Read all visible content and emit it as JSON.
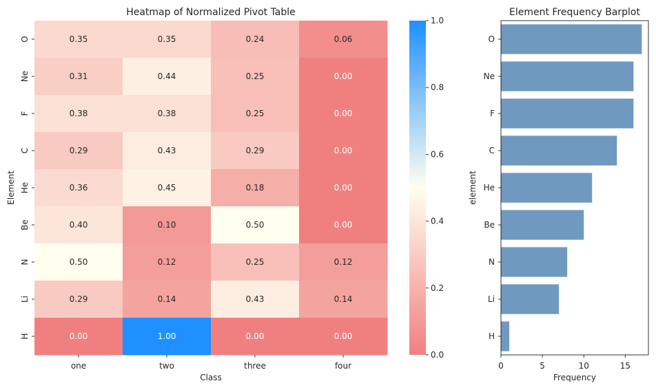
{
  "chart_data": [
    {
      "type": "heatmap",
      "title": "Heatmap of Normalized Pivot Table",
      "xlabel": "Class",
      "ylabel": "Element",
      "x_categories": [
        "one",
        "two",
        "three",
        "four"
      ],
      "y_categories": [
        "O",
        "Ne",
        "F",
        "C",
        "He",
        "Be",
        "N",
        "Li",
        "H"
      ],
      "values": [
        [
          0.35,
          0.35,
          0.24,
          0.06
        ],
        [
          0.31,
          0.44,
          0.25,
          0.0
        ],
        [
          0.38,
          0.38,
          0.25,
          0.0
        ],
        [
          0.29,
          0.43,
          0.29,
          0.0
        ],
        [
          0.36,
          0.45,
          0.18,
          0.0
        ],
        [
          0.4,
          0.1,
          0.5,
          0.0
        ],
        [
          0.5,
          0.12,
          0.25,
          0.12
        ],
        [
          0.29,
          0.14,
          0.43,
          0.14
        ],
        [
          0.0,
          1.0,
          0.0,
          0.0
        ]
      ],
      "colorbar": {
        "range": [
          0.0,
          1.0
        ],
        "ticks": [
          "0.0",
          "0.2",
          "0.4",
          "0.6",
          "0.8",
          "1.0"
        ],
        "colors": [
          "#f08080",
          "#fffff0",
          "#1e90ff"
        ]
      }
    },
    {
      "type": "bar",
      "orientation": "horizontal",
      "title": "Element Frequency Barplot",
      "xlabel": "Frequency",
      "ylabel": "element",
      "categories": [
        "O",
        "Ne",
        "F",
        "C",
        "He",
        "Be",
        "N",
        "Li",
        "H"
      ],
      "values": [
        17,
        16,
        16,
        14,
        11,
        10,
        8,
        7,
        1
      ],
      "xlim": [
        0,
        17.8
      ],
      "xticks": [
        "0",
        "5",
        "10",
        "15"
      ],
      "bar_color": "#7099c0"
    }
  ]
}
